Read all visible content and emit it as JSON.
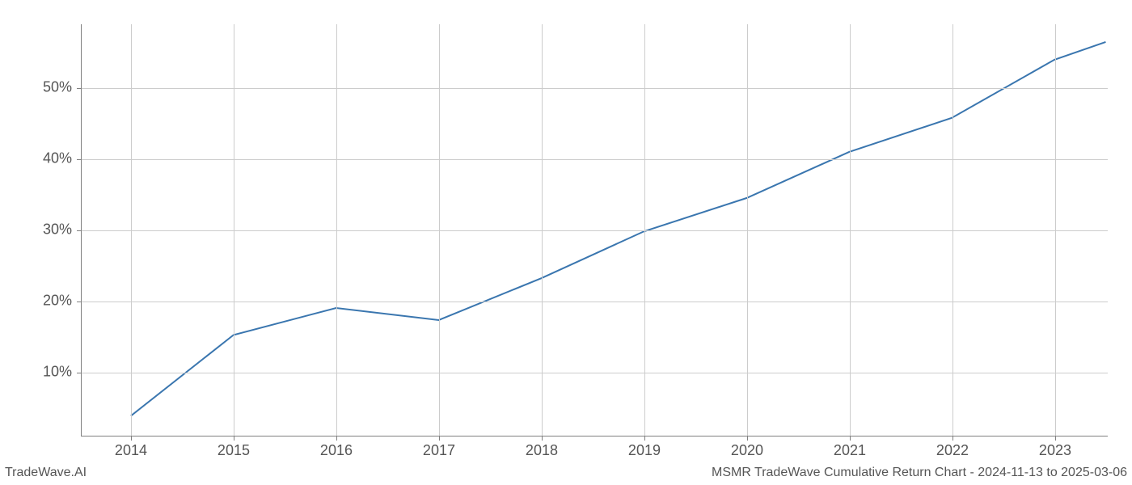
{
  "chart": {
    "type": "line",
    "x_values": [
      2014,
      2015,
      2016,
      2017,
      2018,
      2019,
      2020,
      2021,
      2022,
      2023,
      2023.5
    ],
    "y_values": [
      3.8,
      15.2,
      19.0,
      17.3,
      23.2,
      29.8,
      34.5,
      41.0,
      45.8,
      54.0,
      56.5
    ],
    "x_ticks": [
      2014,
      2015,
      2016,
      2017,
      2018,
      2019,
      2020,
      2021,
      2022,
      2023
    ],
    "x_tick_labels": [
      "2014",
      "2015",
      "2016",
      "2017",
      "2018",
      "2019",
      "2020",
      "2021",
      "2022",
      "2023"
    ],
    "y_ticks": [
      10,
      20,
      30,
      40,
      50
    ],
    "y_tick_labels": [
      "10%",
      "20%",
      "30%",
      "40%",
      "50%"
    ],
    "xlim": [
      2013.52,
      2023.52
    ],
    "ylim": [
      1.0,
      59.0
    ],
    "line_color": "#3a76af",
    "line_width": 2,
    "grid_color": "#cccccc",
    "axis_color": "#808080",
    "background_color": "#ffffff",
    "tick_fontsize": 18,
    "tick_color": "#555555"
  },
  "footer": {
    "left_text": "TradeWave.AI",
    "right_text": "MSMR TradeWave Cumulative Return Chart - 2024-11-13 to 2025-03-06",
    "fontsize": 16,
    "color": "#555555"
  }
}
